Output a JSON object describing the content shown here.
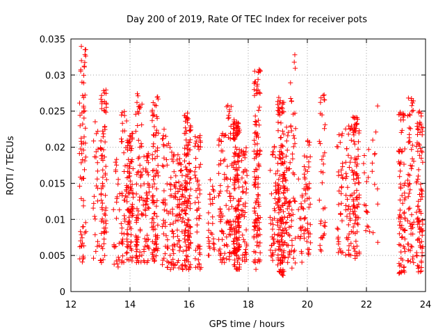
{
  "chart_data": {
    "type": "scatter",
    "title": "Day 200 of 2019, Rate Of TEC Index for receiver pots",
    "xlabel": "GPS time / hours",
    "ylabel": "ROTI / TECUs",
    "xlim": [
      12,
      24
    ],
    "ylim": [
      0,
      0.035
    ],
    "xticks": [
      12,
      14,
      16,
      18,
      20,
      22,
      24
    ],
    "xtick_labels": [
      "12",
      "14",
      "16",
      "18",
      "20",
      "22",
      "24"
    ],
    "yticks": [
      0,
      0.005,
      0.01,
      0.015,
      0.02,
      0.025,
      0.03,
      0.035
    ],
    "ytick_labels": [
      "0",
      "0.005",
      "0.01",
      "0.015",
      "0.02",
      "0.025",
      "0.03",
      "0.035"
    ],
    "grid": true,
    "marker": "plus",
    "color": "#ff0000",
    "clusters": [
      {
        "x": 12.4,
        "y_min": 0.004,
        "y_max": 0.0345,
        "count": 70
      },
      {
        "x": 12.85,
        "y_min": 0.004,
        "y_max": 0.025,
        "count": 25
      },
      {
        "x": 13.1,
        "y_min": 0.004,
        "y_max": 0.028,
        "count": 75
      },
      {
        "x": 13.55,
        "y_min": 0.003,
        "y_max": 0.019,
        "count": 25
      },
      {
        "x": 13.8,
        "y_min": 0.004,
        "y_max": 0.025,
        "count": 45
      },
      {
        "x": 14.0,
        "y_min": 0.004,
        "y_max": 0.022,
        "count": 85
      },
      {
        "x": 14.3,
        "y_min": 0.004,
        "y_max": 0.0275,
        "count": 70
      },
      {
        "x": 14.55,
        "y_min": 0.004,
        "y_max": 0.02,
        "count": 50
      },
      {
        "x": 14.85,
        "y_min": 0.004,
        "y_max": 0.027,
        "count": 90
      },
      {
        "x": 15.2,
        "y_min": 0.003,
        "y_max": 0.023,
        "count": 45
      },
      {
        "x": 15.45,
        "y_min": 0.003,
        "y_max": 0.02,
        "count": 50
      },
      {
        "x": 15.7,
        "y_min": 0.003,
        "y_max": 0.019,
        "count": 55
      },
      {
        "x": 15.95,
        "y_min": 0.003,
        "y_max": 0.025,
        "count": 130
      },
      {
        "x": 16.3,
        "y_min": 0.003,
        "y_max": 0.022,
        "count": 55
      },
      {
        "x": 16.75,
        "y_min": 0.005,
        "y_max": 0.0155,
        "count": 30
      },
      {
        "x": 17.1,
        "y_min": 0.004,
        "y_max": 0.022,
        "count": 50
      },
      {
        "x": 17.35,
        "y_min": 0.004,
        "y_max": 0.026,
        "count": 50
      },
      {
        "x": 17.6,
        "y_min": 0.003,
        "y_max": 0.024,
        "count": 160
      },
      {
        "x": 17.85,
        "y_min": 0.004,
        "y_max": 0.02,
        "count": 50
      },
      {
        "x": 18.3,
        "y_min": 0.003,
        "y_max": 0.031,
        "count": 120
      },
      {
        "x": 18.85,
        "y_min": 0.004,
        "y_max": 0.021,
        "count": 40
      },
      {
        "x": 19.1,
        "y_min": 0.002,
        "y_max": 0.027,
        "count": 140
      },
      {
        "x": 19.3,
        "y_min": 0.004,
        "y_max": 0.023,
        "count": 60
      },
      {
        "x": 19.5,
        "y_min": 0.003,
        "y_max": 0.0335,
        "count": 40
      },
      {
        "x": 19.8,
        "y_min": 0.004,
        "y_max": 0.016,
        "count": 25
      },
      {
        "x": 20.0,
        "y_min": 0.005,
        "y_max": 0.021,
        "count": 45
      },
      {
        "x": 20.5,
        "y_min": 0.005,
        "y_max": 0.0275,
        "count": 35
      },
      {
        "x": 21.1,
        "y_min": 0.005,
        "y_max": 0.022,
        "count": 35
      },
      {
        "x": 21.4,
        "y_min": 0.005,
        "y_max": 0.0235,
        "count": 45
      },
      {
        "x": 21.65,
        "y_min": 0.004,
        "y_max": 0.0245,
        "count": 90
      },
      {
        "x": 22.0,
        "y_min": 0.008,
        "y_max": 0.02,
        "count": 15
      },
      {
        "x": 22.3,
        "y_min": 0.0065,
        "y_max": 0.027,
        "count": 12
      },
      {
        "x": 23.2,
        "y_min": 0.0025,
        "y_max": 0.025,
        "count": 80
      },
      {
        "x": 23.5,
        "y_min": 0.004,
        "y_max": 0.027,
        "count": 60
      },
      {
        "x": 23.8,
        "y_min": 0.0025,
        "y_max": 0.025,
        "count": 90
      }
    ]
  }
}
